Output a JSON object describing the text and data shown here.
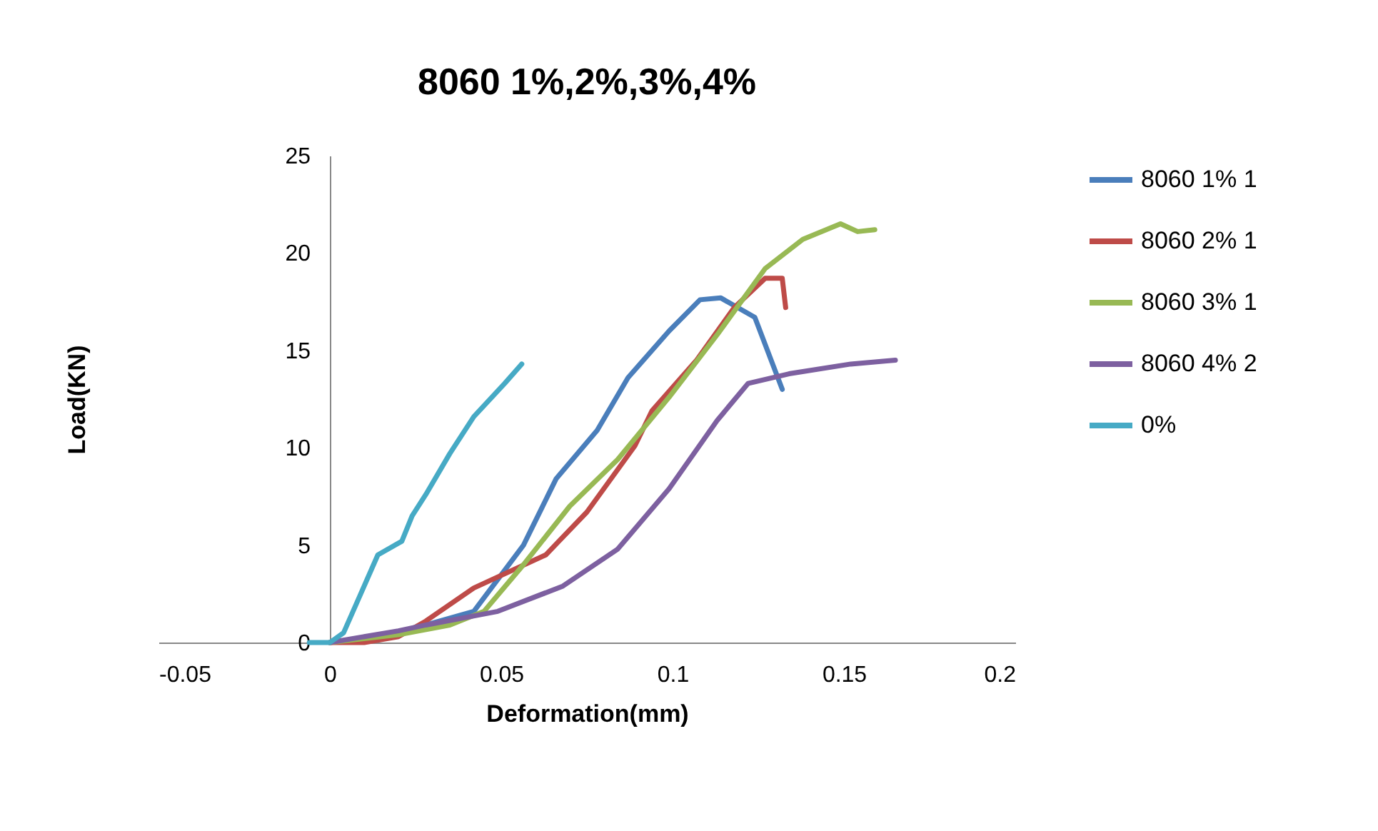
{
  "chart_data": {
    "type": "line",
    "title": "8060 1%,2%,3%,4%",
    "xlabel": "Deformation(mm)",
    "ylabel": "Load(KN)",
    "xlim": [
      -0.05,
      0.2
    ],
    "xticks": [
      -0.05,
      0,
      0.05,
      0.1,
      0.15,
      0.2
    ],
    "ylim": [
      0,
      25
    ],
    "yticks": [
      0,
      5,
      10,
      15,
      20,
      25
    ],
    "grid": false,
    "legend": "right",
    "marker": "none",
    "line_style": "solid",
    "series": [
      {
        "name": "8060 1% 1",
        "color": "#4a7ebb",
        "x": [
          0,
          0.02,
          0.028,
          0.042,
          0.0565,
          0.066,
          0.078,
          0.087,
          0.099,
          0.108,
          0.114,
          0.124,
          0.132
        ],
        "values": [
          0,
          0.5,
          0.9,
          1.6,
          5.0,
          8.4,
          10.9,
          13.6,
          16,
          17.6,
          17.7,
          16.7,
          13.0
        ]
      },
      {
        "name": "8060 2% 1",
        "color": "#be4b48",
        "x": [
          0,
          0.01,
          0.02,
          0.028,
          0.042,
          0.063,
          0.075,
          0.089,
          0.094,
          0.107,
          0.118,
          0.127,
          0.132,
          0.133
        ],
        "values": [
          0,
          0,
          0.3,
          1.1,
          2.8,
          4.5,
          6.7,
          10.1,
          11.9,
          14.5,
          17.2,
          18.7,
          18.7,
          17.2
        ]
      },
      {
        "name": "8060 3% 1",
        "color": "#98b954",
        "x": [
          0,
          0.02,
          0.035,
          0.045,
          0.0565,
          0.07,
          0.084,
          0.099,
          0.113,
          0.127,
          0.138,
          0.149,
          0.154,
          0.159
        ],
        "values": [
          0,
          0.4,
          0.9,
          1.6,
          4.0,
          7.0,
          9.4,
          12.6,
          15.8,
          19.2,
          20.7,
          21.5,
          21.1,
          21.2
        ]
      },
      {
        "name": "8060 4% 2",
        "color": "#7d60a0",
        "x": [
          0,
          0.02,
          0.028,
          0.049,
          0.068,
          0.084,
          0.099,
          0.113,
          0.122,
          0.134,
          0.152,
          0.165
        ],
        "values": [
          0,
          0.6,
          0.9,
          1.6,
          2.9,
          4.8,
          7.9,
          11.4,
          13.3,
          13.8,
          14.3,
          14.5
        ]
      },
      {
        "name": "0%",
        "color": "#46aac5",
        "x": [
          -0.006,
          0,
          0.004,
          0.009,
          0.014,
          0.021,
          0.024,
          0.028,
          0.035,
          0.042,
          0.051,
          0.056
        ],
        "values": [
          0,
          0,
          0.5,
          2.5,
          4.5,
          5.2,
          6.5,
          7.6,
          9.7,
          11.6,
          13.3,
          14.3
        ]
      }
    ]
  }
}
